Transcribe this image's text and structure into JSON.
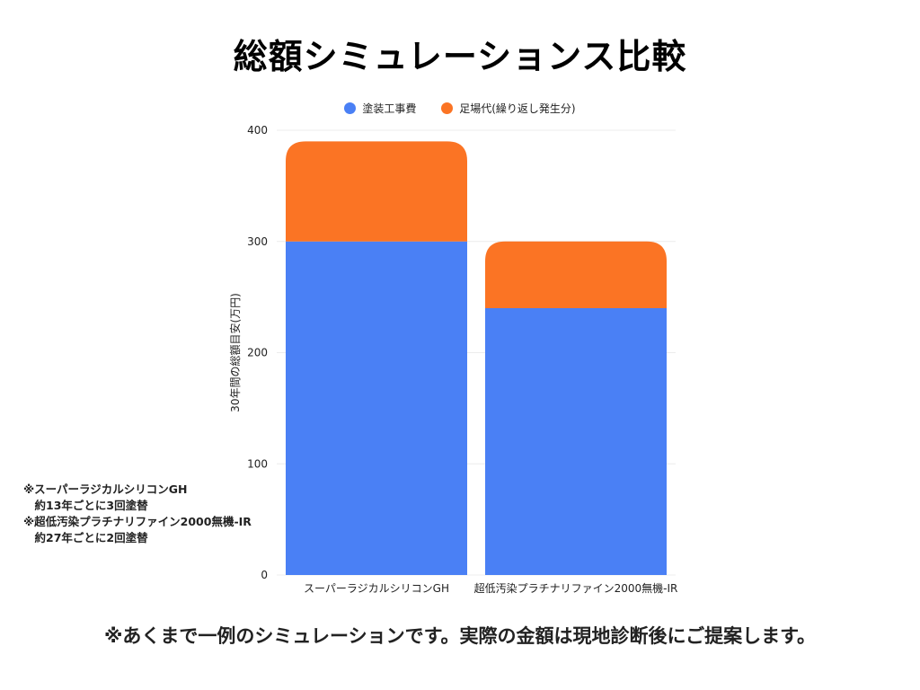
{
  "page": {
    "title": "総額シミュレーションス比較",
    "footer_note": "※あくまで一例のシミュレーションです。実際の金額は現地診断後にご提案します。",
    "side_notes": [
      "※スーパーラジカルシリコンGH",
      "　約13年ごとに3回塗替",
      "※超低汚染プラチナリファイン2000無機-IR",
      "　約27年ごとに2回塗替"
    ]
  },
  "chart_data": {
    "type": "bar",
    "stacked": true,
    "categories": [
      "スーパーラジカルシリコンGH",
      "超低汚染プラチナリファイン2000無機-IR"
    ],
    "series": [
      {
        "name": "塗装工事費",
        "values": [
          300,
          240
        ],
        "color": "#4a80f5"
      },
      {
        "name": "足場代(繰り返し発生分)",
        "values": [
          90,
          60
        ],
        "color": "#fb7424"
      }
    ],
    "ylabel": "30年間の総額目安(万円)",
    "xlabel": "",
    "ylim": [
      0,
      400
    ],
    "yticks": [
      0,
      100,
      200,
      300,
      400
    ],
    "grid": true,
    "legend_position": "top"
  }
}
